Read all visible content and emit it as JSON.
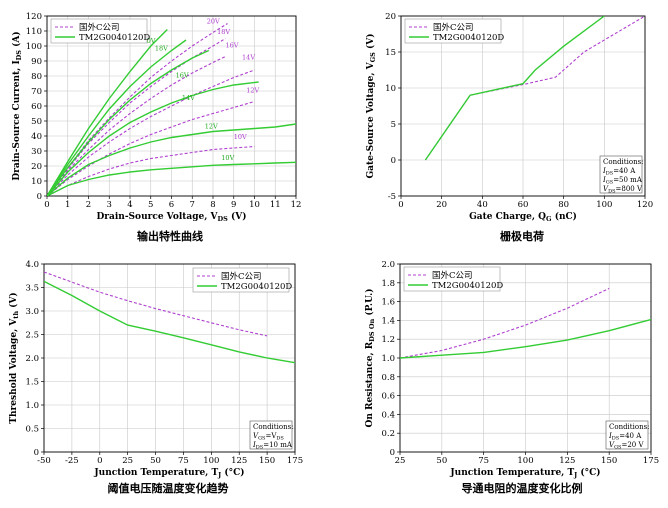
{
  "colors": {
    "green": "#33cc33",
    "purple": "#b040d0",
    "grid": "#c8c8c8",
    "box": "#555555"
  },
  "chart_data": [
    {
      "type": "line",
      "caption": "输出特性曲线",
      "xlabel": "Drain-Source Voltage, V",
      "xlabel_sub": "DS",
      "xlabel_unit": " (V)",
      "ylabel": "Drain-Source Current, I",
      "ylabel_sub": "DS",
      "ylabel_unit": " (A)",
      "xlim": [
        0,
        12
      ],
      "ylim": [
        0,
        120
      ],
      "xticks": [
        0,
        1,
        2,
        3,
        4,
        5,
        6,
        7,
        8,
        9,
        10,
        11,
        12
      ],
      "yticks": [
        0,
        10,
        20,
        30,
        40,
        50,
        60,
        70,
        80,
        90,
        100,
        110,
        120
      ],
      "grid": true,
      "legend_position": "top-left",
      "legend": [
        "国外C公司",
        "TM2G0040120D"
      ],
      "series": [
        {
          "label": "20V",
          "style": "dashed",
          "x": [
            0,
            1,
            2,
            3,
            4,
            5,
            6,
            7,
            8,
            8.7
          ],
          "y": [
            0,
            19,
            37,
            52,
            66,
            79,
            90,
            100,
            109,
            115
          ]
        },
        {
          "label": "18V",
          "style": "dashed",
          "x": [
            0,
            1,
            2,
            3,
            4,
            5,
            6,
            7,
            8,
            8.6
          ],
          "y": [
            0,
            18,
            35,
            49,
            62,
            73,
            83,
            92,
            100,
            105
          ]
        },
        {
          "label": "16V",
          "style": "dashed",
          "x": [
            0,
            1,
            2,
            3,
            4,
            5,
            6,
            7,
            8,
            8.6
          ],
          "y": [
            0,
            17,
            31,
            44,
            55,
            65,
            74,
            82,
            89,
            93
          ]
        },
        {
          "label": "14V",
          "style": "dashed",
          "x": [
            0,
            1,
            2,
            3,
            4,
            5,
            6,
            7,
            8,
            9,
            10
          ],
          "y": [
            0,
            14,
            26,
            36,
            45,
            53,
            60,
            67,
            73,
            79,
            84
          ]
        },
        {
          "label": "12V",
          "style": "dashed",
          "x": [
            0,
            1,
            2,
            3,
            4,
            5,
            6,
            7,
            8,
            9,
            10
          ],
          "y": [
            0,
            11,
            20,
            28,
            35,
            41,
            46,
            51,
            55,
            59,
            63
          ]
        },
        {
          "label": "10V",
          "style": "dashed",
          "x": [
            0,
            1,
            2,
            3,
            4,
            5,
            6,
            7,
            8,
            9,
            10
          ],
          "y": [
            0,
            7,
            13,
            18,
            22,
            25,
            27,
            29,
            31,
            32,
            33
          ]
        },
        {
          "label": "20V",
          "style": "solid",
          "x": [
            0,
            1,
            2,
            3,
            4,
            5,
            5.8
          ],
          "y": [
            0,
            23,
            45,
            65,
            83,
            100,
            111
          ]
        },
        {
          "label": "18V",
          "style": "solid",
          "x": [
            0,
            1,
            2,
            3,
            4,
            5,
            6,
            6.7
          ],
          "y": [
            0,
            21,
            40,
            58,
            73,
            86,
            97,
            104
          ]
        },
        {
          "label": "16V",
          "style": "solid",
          "x": [
            0,
            1,
            2,
            3,
            4,
            5,
            6,
            7,
            7.8
          ],
          "y": [
            0,
            19,
            36,
            51,
            64,
            75,
            84,
            92,
            97
          ]
        },
        {
          "label": "14V",
          "style": "solid",
          "x": [
            0,
            1,
            2,
            3,
            4,
            5,
            6,
            7,
            8,
            9,
            10.2
          ],
          "y": [
            0,
            16,
            29,
            40,
            49,
            56,
            62,
            67,
            71,
            74,
            76
          ]
        },
        {
          "label": "12V",
          "style": "solid",
          "x": [
            0,
            1,
            2,
            3,
            4,
            5,
            6,
            7,
            8,
            9,
            10,
            11,
            12
          ],
          "y": [
            0,
            12,
            21,
            27,
            32,
            36,
            39,
            41,
            43,
            44,
            45,
            46,
            48
          ]
        },
        {
          "label": "10V",
          "style": "solid",
          "x": [
            0,
            1,
            2,
            3,
            4,
            5,
            6,
            7,
            8,
            9,
            10,
            11,
            12
          ],
          "y": [
            0,
            7,
            11,
            14,
            16,
            17.5,
            18.5,
            19.5,
            20.5,
            21,
            21.5,
            22,
            22.5
          ]
        }
      ],
      "series_tags": [
        {
          "text": "20V",
          "color": "purple",
          "x": 7.7,
          "y": 115
        },
        {
          "text": "18V",
          "color": "purple",
          "x": 8.2,
          "y": 108
        },
        {
          "text": "16V",
          "color": "purple",
          "x": 8.6,
          "y": 99
        },
        {
          "text": "14V",
          "color": "purple",
          "x": 9.4,
          "y": 91
        },
        {
          "text": "12V",
          "color": "purple",
          "x": 9.6,
          "y": 69
        },
        {
          "text": "10V",
          "color": "purple",
          "x": 9.0,
          "y": 38
        },
        {
          "text": "20V",
          "color": "green",
          "x": 4.6,
          "y": 102
        },
        {
          "text": "18V",
          "color": "green",
          "x": 5.2,
          "y": 97
        },
        {
          "text": "16V",
          "color": "green",
          "x": 6.2,
          "y": 79
        },
        {
          "text": "14V",
          "color": "green",
          "x": 6.5,
          "y": 64
        },
        {
          "text": "12V",
          "color": "green",
          "x": 7.6,
          "y": 45
        },
        {
          "text": "10V",
          "color": "green",
          "x": 8.4,
          "y": 24
        }
      ]
    },
    {
      "type": "line",
      "caption": "栅极电荷",
      "xlabel": "Gate Charge, Q",
      "xlabel_sub": "G",
      "xlabel_unit": " (nC)",
      "ylabel": "Gate-Source Voltage, V",
      "ylabel_sub": "GS",
      "ylabel_unit": " (V)",
      "xlim": [
        0,
        120
      ],
      "ylim": [
        -5,
        20
      ],
      "xticks": [
        0,
        20,
        40,
        60,
        80,
        100,
        120
      ],
      "yticks": [
        -5,
        0,
        5,
        10,
        15,
        20
      ],
      "grid": true,
      "legend_position": "top-left",
      "legend": [
        "国外C公司",
        "TM2G0040120D"
      ],
      "series": [
        {
          "name": "国外C公司",
          "style": "dashed",
          "x": [
            12,
            34,
            62,
            76,
            90,
            120
          ],
          "y": [
            0,
            9,
            10.6,
            11.5,
            15,
            20
          ]
        },
        {
          "name": "TM2G0040120D",
          "style": "solid",
          "x": [
            12,
            34,
            60,
            66,
            80,
            100
          ],
          "y": [
            0,
            9,
            10.6,
            12.5,
            15.8,
            20
          ]
        }
      ],
      "conditions": {
        "title": "Conditions:",
        "lines": [
          {
            "pre": "I",
            "sub": "DS",
            "post": "=40 A"
          },
          {
            "pre": "I",
            "sub": "GS",
            "post": "=50 mA"
          },
          {
            "pre": "V",
            "sub": "DS",
            "post": "=800 V"
          }
        ]
      }
    },
    {
      "type": "line",
      "caption": "阈值电压随温度变化趋势",
      "xlabel": "Junction Temperature, T",
      "xlabel_sub": "J",
      "xlabel_unit": " (°C)",
      "ylabel": "Threshold Voltage, V",
      "ylabel_sub": "th",
      "ylabel_unit": " (V)",
      "xlim": [
        -50,
        175
      ],
      "ylim": [
        0,
        4
      ],
      "xticks": [
        -50,
        -25,
        0,
        25,
        50,
        75,
        100,
        125,
        150,
        175
      ],
      "yticks": [
        0,
        0.5,
        1.0,
        1.5,
        2.0,
        2.5,
        3.0,
        3.5,
        4.0
      ],
      "ytick_labels": [
        "0",
        "0.5",
        "1.0",
        "1.5",
        "2.0",
        "2.5",
        "3.0",
        "3.5",
        "4.0"
      ],
      "grid": true,
      "legend_position": "top-right",
      "legend": [
        "国外C公司",
        "TM2G0040120D"
      ],
      "series": [
        {
          "name": "国外C公司",
          "style": "dashed",
          "x": [
            -50,
            0,
            25,
            50,
            75,
            100,
            125,
            150
          ],
          "y": [
            3.83,
            3.4,
            3.22,
            3.05,
            2.9,
            2.75,
            2.6,
            2.47
          ]
        },
        {
          "name": "TM2G0040120D",
          "style": "solid",
          "x": [
            -50,
            -25,
            0,
            25,
            50,
            75,
            100,
            125,
            150,
            175
          ],
          "y": [
            3.63,
            3.33,
            3.0,
            2.7,
            2.57,
            2.43,
            2.28,
            2.13,
            2.0,
            1.9
          ]
        }
      ],
      "conditions": {
        "title": "Conditions:",
        "lines": [
          {
            "pre": "V",
            "sub": "GS",
            "post": "=V",
            "sub2": "DS"
          },
          {
            "pre": "I",
            "sub": "DS",
            "post": "=10 mA"
          }
        ]
      }
    },
    {
      "type": "line",
      "caption": "导通电阻的温度变化比例",
      "xlabel": "Junction Temperature, T",
      "xlabel_sub": "J",
      "xlabel_unit": " (°C)",
      "ylabel": "On Resistance, R",
      "ylabel_sub": "DS On",
      "ylabel_unit": " (P.U.)",
      "xlim": [
        25,
        175
      ],
      "ylim": [
        0,
        2.0
      ],
      "xticks": [
        25,
        50,
        75,
        100,
        125,
        150,
        175
      ],
      "yticks": [
        0,
        0.2,
        0.4,
        0.6,
        0.8,
        1.0,
        1.2,
        1.4,
        1.6,
        1.8,
        2.0
      ],
      "ytick_labels": [
        "0",
        "0.2",
        "0.4",
        "0.6",
        "0.8",
        "1.0",
        "1.2",
        "1.4",
        "1.6",
        "1.8",
        "2.0"
      ],
      "grid": true,
      "legend_position": "top-left",
      "legend": [
        "国外C公司",
        "TM2G0040120D"
      ],
      "series": [
        {
          "name": "国外C公司",
          "style": "dashed",
          "x": [
            25,
            50,
            75,
            100,
            125,
            150
          ],
          "y": [
            1.0,
            1.08,
            1.2,
            1.35,
            1.53,
            1.74
          ]
        },
        {
          "name": "TM2G0040120D",
          "style": "solid",
          "x": [
            25,
            50,
            75,
            100,
            125,
            150,
            175
          ],
          "y": [
            1.0,
            1.03,
            1.06,
            1.12,
            1.19,
            1.29,
            1.41
          ]
        }
      ],
      "conditions": {
        "title": "Conditions:",
        "lines": [
          {
            "pre": "I",
            "sub": "DS",
            "post": "=40 A"
          },
          {
            "pre": "V",
            "sub": "GS",
            "post": "=20 V"
          }
        ]
      }
    }
  ]
}
